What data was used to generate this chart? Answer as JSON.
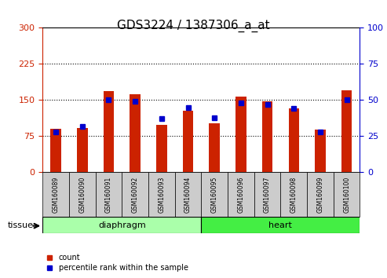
{
  "title": "GDS3224 / 1387306_a_at",
  "samples": [
    "GSM160089",
    "GSM160090",
    "GSM160091",
    "GSM160092",
    "GSM160093",
    "GSM160094",
    "GSM160095",
    "GSM160096",
    "GSM160097",
    "GSM160098",
    "GSM160099",
    "GSM160100"
  ],
  "counts": [
    90,
    92,
    168,
    162,
    98,
    128,
    102,
    158,
    148,
    132,
    88,
    170
  ],
  "percentiles": [
    28,
    32,
    50,
    49,
    37,
    45,
    38,
    48,
    47,
    44,
    28,
    50
  ],
  "groups": [
    {
      "label": "diaphragm",
      "start": 0,
      "end": 6,
      "color": "#90ee90"
    },
    {
      "label": "heart",
      "start": 6,
      "end": 12,
      "color": "#00dd00"
    }
  ],
  "left_yticks": [
    0,
    75,
    150,
    225,
    300
  ],
  "right_yticks": [
    0,
    25,
    50,
    75,
    100
  ],
  "ylim_left": [
    0,
    300
  ],
  "ylim_right": [
    0,
    100
  ],
  "bar_color": "#cc2200",
  "dot_color": "#0000cc",
  "grid_color": "black",
  "background_plot": "white",
  "background_sample_labels": "#cccccc",
  "left_tick_color": "#cc2200",
  "right_tick_color": "#0000cc",
  "diaphragm_color": "#aaffaa",
  "heart_color": "#44ee44",
  "bar_width": 0.4,
  "legend_count_label": "count",
  "legend_pct_label": "percentile rank within the sample",
  "tissue_label": "tissue"
}
